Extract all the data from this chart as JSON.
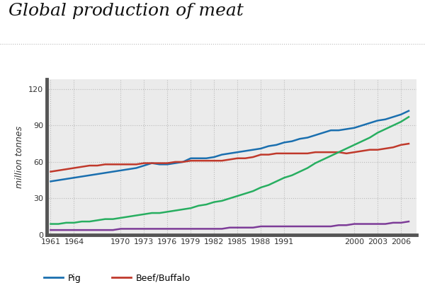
{
  "title": "Global production of meat",
  "ylabel": "million tonnes",
  "background_color": "#ffffff",
  "plot_bg_color": "#ebebeb",
  "grid_color": "#bbbbbb",
  "years": [
    1961,
    1962,
    1963,
    1964,
    1965,
    1966,
    1967,
    1968,
    1969,
    1970,
    1971,
    1972,
    1973,
    1974,
    1975,
    1976,
    1977,
    1978,
    1979,
    1980,
    1981,
    1982,
    1983,
    1984,
    1985,
    1986,
    1987,
    1988,
    1989,
    1990,
    1991,
    1992,
    1993,
    1994,
    1995,
    1996,
    1997,
    1998,
    1999,
    2000,
    2001,
    2002,
    2003,
    2004,
    2005,
    2006,
    2007
  ],
  "pig": [
    44,
    45,
    46,
    47,
    48,
    49,
    50,
    51,
    52,
    53,
    54,
    55,
    57,
    59,
    58,
    58,
    59,
    60,
    63,
    63,
    63,
    64,
    66,
    67,
    68,
    69,
    70,
    71,
    73,
    74,
    76,
    77,
    79,
    80,
    82,
    84,
    86,
    86,
    87,
    88,
    90,
    92,
    94,
    95,
    97,
    99,
    102
  ],
  "beef": [
    52,
    53,
    54,
    55,
    56,
    57,
    57,
    58,
    58,
    58,
    58,
    58,
    59,
    59,
    59,
    59,
    60,
    60,
    61,
    61,
    61,
    61,
    61,
    62,
    63,
    63,
    64,
    66,
    66,
    67,
    67,
    67,
    67,
    67,
    68,
    68,
    68,
    68,
    67,
    68,
    69,
    70,
    70,
    71,
    72,
    74,
    75
  ],
  "poultry": [
    9,
    9,
    10,
    10,
    11,
    11,
    12,
    13,
    13,
    14,
    15,
    16,
    17,
    18,
    18,
    19,
    20,
    21,
    22,
    24,
    25,
    27,
    28,
    30,
    32,
    34,
    36,
    39,
    41,
    44,
    47,
    49,
    52,
    55,
    59,
    62,
    65,
    68,
    71,
    74,
    77,
    80,
    84,
    87,
    90,
    93,
    97
  ],
  "sheep": [
    4,
    4,
    4,
    4,
    4,
    4,
    4,
    4,
    4,
    5,
    5,
    5,
    5,
    5,
    5,
    5,
    5,
    5,
    5,
    5,
    5,
    5,
    5,
    6,
    6,
    6,
    6,
    7,
    7,
    7,
    7,
    7,
    7,
    7,
    7,
    7,
    7,
    8,
    8,
    9,
    9,
    9,
    9,
    9,
    10,
    10,
    11
  ],
  "pig_color": "#1a6faf",
  "beef_color": "#c0392b",
  "poultry_color": "#27ae60",
  "sheep_color": "#7d3c98",
  "xticks": [
    1961,
    1964,
    1970,
    1973,
    1976,
    1979,
    1982,
    1985,
    1988,
    1991,
    2000,
    2003,
    2006
  ],
  "ytick_vals": [
    0,
    30,
    60,
    90,
    120
  ],
  "ylim": [
    0,
    128
  ],
  "xlim": [
    1960.5,
    2008
  ]
}
